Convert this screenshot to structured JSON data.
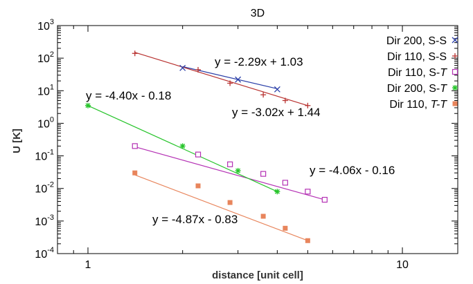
{
  "chart_data": {
    "type": "scatter",
    "title": "3D",
    "xlabel": "distance [unit cell]",
    "ylabel": "U [K]",
    "x_scale": "log",
    "y_scale": "log",
    "xlim": [
      0.8,
      15
    ],
    "ylim": [
      0.0001,
      1000
    ],
    "x_ticks": [
      {
        "value": 1,
        "label": "1"
      },
      {
        "value": 10,
        "label": "10"
      }
    ],
    "y_ticks": [
      {
        "value": 0.0001,
        "base": "10",
        "exp": "-4"
      },
      {
        "value": 0.001,
        "base": "10",
        "exp": "-3"
      },
      {
        "value": 0.01,
        "base": "10",
        "exp": "-2"
      },
      {
        "value": 0.1,
        "base": "10",
        "exp": "-1"
      },
      {
        "value": 1,
        "base": "10",
        "exp": "0"
      },
      {
        "value": 10,
        "base": "10",
        "exp": "1"
      },
      {
        "value": 100,
        "base": "10",
        "exp": "2"
      },
      {
        "value": 1000,
        "base": "10",
        "exp": "3"
      }
    ],
    "grid": false,
    "legend_position": "top-right",
    "series": [
      {
        "name": "Dir 200, S-S",
        "label_main": "Dir 200, S-",
        "label_tail": "S",
        "tail_italic": false,
        "marker": "x",
        "color": "#2b3fa8",
        "x": [
          2.0,
          3.0,
          4.0
        ],
        "y": [
          50,
          22,
          11
        ]
      },
      {
        "name": "Dir 110, S-S",
        "label_main": "Dir 110, S-",
        "label_tail": "S",
        "tail_italic": false,
        "marker": "plus",
        "color": "#b8312f",
        "x": [
          1.41,
          2.24,
          2.83,
          3.61,
          4.24,
          5.0
        ],
        "y": [
          140,
          44,
          17,
          7.5,
          5,
          3.5
        ]
      },
      {
        "name": "Dir 110, S-T",
        "label_main": "Dir 110, S-",
        "label_tail": "T",
        "tail_italic": true,
        "marker": "square-open",
        "color": "#b430b4",
        "x": [
          1.41,
          2.24,
          2.83,
          3.61,
          4.24,
          5.0,
          5.66
        ],
        "y": [
          0.2,
          0.11,
          0.055,
          0.028,
          0.015,
          0.008,
          0.0045
        ]
      },
      {
        "name": "Dir 200, S-T",
        "label_main": "Dir 200, S-",
        "label_tail": "T",
        "tail_italic": true,
        "marker": "star",
        "color": "#27c42b",
        "x": [
          1.0,
          2.0,
          3.0,
          4.0
        ],
        "y": [
          3.5,
          0.2,
          0.035,
          0.008
        ]
      },
      {
        "name": "Dir 110, T-T",
        "label_main": "Dir 110, ",
        "label_tail": "T-T",
        "tail_italic": true,
        "marker": "square-filled",
        "color": "#e8855c",
        "x": [
          1.41,
          2.24,
          2.83,
          3.61,
          4.24,
          5.0
        ],
        "y": [
          0.03,
          0.012,
          0.0037,
          0.0014,
          0.0006,
          0.00025
        ]
      }
    ],
    "fit_lines": [
      {
        "series": "Dir 200, S-S",
        "equation": "y = -2.29x + 1.03",
        "color": "#2b3fa8",
        "x_range": [
          2.0,
          4.0
        ],
        "y_range": [
          55,
          11.5
        ]
      },
      {
        "series": "Dir 110, S-S",
        "equation": "y = -3.02x + 1.44",
        "color": "#b8312f",
        "x_range": [
          1.41,
          5.0
        ],
        "y_range": [
          150,
          3.5
        ]
      },
      {
        "series": "Dir 110, S-T",
        "equation": "y = -4.06x - 0.16",
        "color": "#b430b4",
        "x_range": [
          1.41,
          5.66
        ],
        "y_range": [
          0.19,
          0.0045
        ]
      },
      {
        "series": "Dir 200, S-T",
        "equation": "y = -4.40x - 0.18",
        "color": "#27c42b",
        "x_range": [
          1.0,
          4.0
        ],
        "y_range": [
          3.5,
          0.008
        ]
      },
      {
        "series": "Dir 110, T-T",
        "equation": "y = -4.87x - 0.83",
        "color": "#e8855c",
        "x_range": [
          1.41,
          5.0
        ],
        "y_range": [
          0.026,
          0.00025
        ]
      }
    ]
  }
}
